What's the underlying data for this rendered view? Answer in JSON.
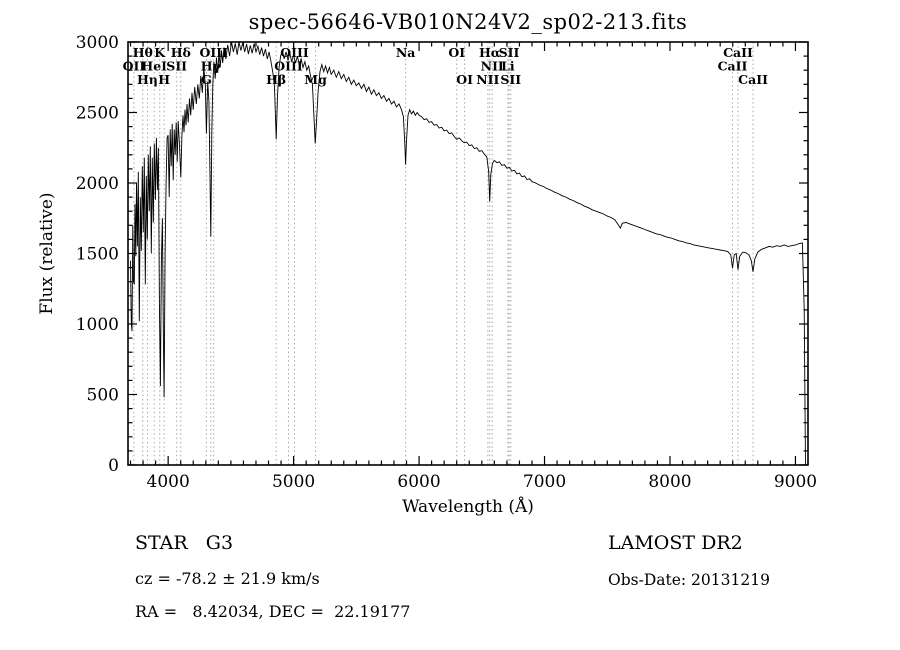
{
  "title": "spec-56646-VB010N24V2_sp02-213.fits",
  "footer": {
    "class_label": "STAR   G3",
    "cz": "cz = -78.2 ± 21.9 km/s",
    "radec": "RA =   8.42034, DEC =  22.19177",
    "survey": "LAMOST DR2",
    "obs_date": "Obs-Date: 20131219"
  },
  "chart_data": {
    "type": "line",
    "title": "spec-56646-VB010N24V2_sp02-213.fits",
    "xlabel": "Wavelength (Å)",
    "ylabel": "Flux (relative)",
    "xlim": [
      3680,
      9100
    ],
    "ylim": [
      0,
      3000
    ],
    "x_ticks": [
      4000,
      5000,
      6000,
      7000,
      8000,
      9000
    ],
    "y_ticks": [
      0,
      500,
      1000,
      1500,
      2000,
      2500,
      3000
    ],
    "grid": false,
    "legend": "none",
    "line_color": "#000000",
    "annotation_line_color": "#a8a8a8",
    "annotations": [
      {
        "wavelength": 3727,
        "label": "OII",
        "row": 2
      },
      {
        "wavelength": 3798,
        "label": "Hθ",
        "row": 1
      },
      {
        "wavelength": 3835,
        "label": "Hη",
        "row": 3
      },
      {
        "wavelength": 3889,
        "label": "HeI",
        "row": 2
      },
      {
        "wavelength": 3933,
        "label": "K",
        "row": 1
      },
      {
        "wavelength": 3968,
        "label": "H",
        "row": 3
      },
      {
        "wavelength": 4068,
        "label": "SII",
        "row": 2
      },
      {
        "wavelength": 4101,
        "label": "Hδ",
        "row": 1
      },
      {
        "wavelength": 4305,
        "label": "G",
        "row": 3
      },
      {
        "wavelength": 4340,
        "label": "Hγ",
        "row": 2
      },
      {
        "wavelength": 4363,
        "label": "OIII",
        "row": 1
      },
      {
        "wavelength": 4861,
        "label": "Hβ",
        "row": 3
      },
      {
        "wavelength": 4959,
        "label": "OIII",
        "row": 2
      },
      {
        "wavelength": 5007,
        "label": "OIII",
        "row": 1
      },
      {
        "wavelength": 5175,
        "label": "Mg",
        "row": 3
      },
      {
        "wavelength": 5893,
        "label": "Na",
        "row": 1
      },
      {
        "wavelength": 6300,
        "label": "OI",
        "row": 1
      },
      {
        "wavelength": 6363,
        "label": "OI",
        "row": 3
      },
      {
        "wavelength": 6548,
        "label": "NII",
        "row": 3
      },
      {
        "wavelength": 6563,
        "label": "Hα",
        "row": 1
      },
      {
        "wavelength": 6583,
        "label": "NII",
        "row": 2
      },
      {
        "wavelength": 6708,
        "label": "Li",
        "row": 2
      },
      {
        "wavelength": 6717,
        "label": "SII",
        "row": 1
      },
      {
        "wavelength": 6731,
        "label": "SII",
        "row": 3
      },
      {
        "wavelength": 8498,
        "label": "CaII",
        "row": 2
      },
      {
        "wavelength": 8542,
        "label": "CaII",
        "row": 1
      },
      {
        "wavelength": 8662,
        "label": "CaII",
        "row": 3
      }
    ],
    "spectrum": [
      [
        3700,
        1450
      ],
      [
        3706,
        1000
      ],
      [
        3712,
        950
      ],
      [
        3718,
        1700
      ],
      [
        3724,
        1300
      ],
      [
        3730,
        1280
      ],
      [
        3736,
        1850
      ],
      [
        3742,
        1480
      ],
      [
        3748,
        2000
      ],
      [
        3755,
        1550
      ],
      [
        3762,
        2080
      ],
      [
        3770,
        1020
      ],
      [
        3778,
        1900
      ],
      [
        3786,
        1520
      ],
      [
        3794,
        2120
      ],
      [
        3802,
        1650
      ],
      [
        3810,
        2180
      ],
      [
        3818,
        1280
      ],
      [
        3826,
        2050
      ],
      [
        3834,
        1600
      ],
      [
        3842,
        2200
      ],
      [
        3850,
        1800
      ],
      [
        3858,
        2260
      ],
      [
        3866,
        1500
      ],
      [
        3874,
        2180
      ],
      [
        3882,
        1720
      ],
      [
        3890,
        2280
      ],
      [
        3898,
        1880
      ],
      [
        3906,
        2320
      ],
      [
        3914,
        1950
      ],
      [
        3922,
        2250
      ],
      [
        3930,
        1150
      ],
      [
        3938,
        560
      ],
      [
        3946,
        1450
      ],
      [
        3954,
        1750
      ],
      [
        3962,
        900
      ],
      [
        3968,
        480
      ],
      [
        3976,
        1500
      ],
      [
        3984,
        2000
      ],
      [
        3992,
        2320
      ],
      [
        4000,
        2340
      ],
      [
        4008,
        1900
      ],
      [
        4016,
        2380
      ],
      [
        4024,
        2120
      ],
      [
        4032,
        2420
      ],
      [
        4040,
        2020
      ],
      [
        4048,
        2380
      ],
      [
        4056,
        2200
      ],
      [
        4064,
        2430
      ],
      [
        4072,
        2150
      ],
      [
        4080,
        2440
      ],
      [
        4090,
        2280
      ],
      [
        4101,
        2040
      ],
      [
        4110,
        2330
      ],
      [
        4118,
        2480
      ],
      [
        4126,
        2360
      ],
      [
        4134,
        2520
      ],
      [
        4142,
        2410
      ],
      [
        4150,
        2560
      ],
      [
        4160,
        2430
      ],
      [
        4170,
        2600
      ],
      [
        4180,
        2480
      ],
      [
        4190,
        2640
      ],
      [
        4200,
        2520
      ],
      [
        4212,
        2680
      ],
      [
        4224,
        2560
      ],
      [
        4236,
        2700
      ],
      [
        4248,
        2600
      ],
      [
        4260,
        2760
      ],
      [
        4272,
        2640
      ],
      [
        4284,
        2820
      ],
      [
        4296,
        2700
      ],
      [
        4305,
        2350
      ],
      [
        4315,
        2720
      ],
      [
        4325,
        2580
      ],
      [
        4333,
        2100
      ],
      [
        4340,
        1620
      ],
      [
        4348,
        2350
      ],
      [
        4356,
        2700
      ],
      [
        4365,
        2860
      ],
      [
        4375,
        2740
      ],
      [
        4385,
        2890
      ],
      [
        4395,
        2780
      ],
      [
        4405,
        2920
      ],
      [
        4415,
        2820
      ],
      [
        4425,
        2940
      ],
      [
        4435,
        2850
      ],
      [
        4445,
        2960
      ],
      [
        4460,
        2880
      ],
      [
        4475,
        2980
      ],
      [
        4490,
        2900
      ],
      [
        4505,
        3000
      ],
      [
        4520,
        2930
      ],
      [
        4535,
        2990
      ],
      [
        4550,
        2910
      ],
      [
        4565,
        3000
      ],
      [
        4580,
        2940
      ],
      [
        4595,
        2995
      ],
      [
        4610,
        2930
      ],
      [
        4625,
        2985
      ],
      [
        4640,
        2915
      ],
      [
        4655,
        2975
      ],
      [
        4670,
        2920
      ],
      [
        4685,
        2990
      ],
      [
        4700,
        2930
      ],
      [
        4715,
        2970
      ],
      [
        4730,
        2910
      ],
      [
        4745,
        2960
      ],
      [
        4760,
        2900
      ],
      [
        4775,
        2950
      ],
      [
        4790,
        2880
      ],
      [
        4805,
        2930
      ],
      [
        4820,
        2860
      ],
      [
        4835,
        2780
      ],
      [
        4848,
        2680
      ],
      [
        4861,
        2310
      ],
      [
        4872,
        2620
      ],
      [
        4884,
        2820
      ],
      [
        4896,
        2900
      ],
      [
        4910,
        2940
      ],
      [
        4925,
        2880
      ],
      [
        4940,
        2930
      ],
      [
        4955,
        2870
      ],
      [
        4970,
        2920
      ],
      [
        4985,
        2860
      ],
      [
        5000,
        2910
      ],
      [
        5015,
        2850
      ],
      [
        5030,
        2900
      ],
      [
        5045,
        2840
      ],
      [
        5060,
        2880
      ],
      [
        5075,
        2820
      ],
      [
        5090,
        2860
      ],
      [
        5105,
        2800
      ],
      [
        5120,
        2830
      ],
      [
        5135,
        2760
      ],
      [
        5150,
        2700
      ],
      [
        5162,
        2480
      ],
      [
        5172,
        2280
      ],
      [
        5182,
        2420
      ],
      [
        5195,
        2650
      ],
      [
        5210,
        2790
      ],
      [
        5225,
        2840
      ],
      [
        5240,
        2790
      ],
      [
        5255,
        2830
      ],
      [
        5270,
        2780
      ],
      [
        5285,
        2820
      ],
      [
        5300,
        2770
      ],
      [
        5320,
        2800
      ],
      [
        5340,
        2750
      ],
      [
        5360,
        2790
      ],
      [
        5380,
        2740
      ],
      [
        5400,
        2770
      ],
      [
        5420,
        2720
      ],
      [
        5440,
        2750
      ],
      [
        5460,
        2700
      ],
      [
        5480,
        2730
      ],
      [
        5500,
        2690
      ],
      [
        5520,
        2710
      ],
      [
        5540,
        2670
      ],
      [
        5560,
        2700
      ],
      [
        5580,
        2650
      ],
      [
        5600,
        2680
      ],
      [
        5620,
        2630
      ],
      [
        5640,
        2660
      ],
      [
        5660,
        2620
      ],
      [
        5680,
        2640
      ],
      [
        5700,
        2600
      ],
      [
        5720,
        2620
      ],
      [
        5740,
        2580
      ],
      [
        5760,
        2600
      ],
      [
        5780,
        2560
      ],
      [
        5800,
        2580
      ],
      [
        5820,
        2540
      ],
      [
        5840,
        2560
      ],
      [
        5860,
        2520
      ],
      [
        5875,
        2470
      ],
      [
        5886,
        2280
      ],
      [
        5893,
        2130
      ],
      [
        5900,
        2300
      ],
      [
        5912,
        2480
      ],
      [
        5925,
        2520
      ],
      [
        5940,
        2490
      ],
      [
        5955,
        2510
      ],
      [
        5970,
        2480
      ],
      [
        5985,
        2500
      ],
      [
        6000,
        2480
      ],
      [
        6020,
        2470
      ],
      [
        6040,
        2450
      ],
      [
        6060,
        2455
      ],
      [
        6080,
        2430
      ],
      [
        6100,
        2435
      ],
      [
        6120,
        2410
      ],
      [
        6140,
        2415
      ],
      [
        6160,
        2390
      ],
      [
        6180,
        2395
      ],
      [
        6200,
        2370
      ],
      [
        6220,
        2375
      ],
      [
        6240,
        2350
      ],
      [
        6260,
        2355
      ],
      [
        6280,
        2330
      ],
      [
        6300,
        2310
      ],
      [
        6320,
        2320
      ],
      [
        6340,
        2300
      ],
      [
        6360,
        2285
      ],
      [
        6380,
        2290
      ],
      [
        6400,
        2265
      ],
      [
        6420,
        2270
      ],
      [
        6440,
        2245
      ],
      [
        6460,
        2250
      ],
      [
        6480,
        2225
      ],
      [
        6500,
        2230
      ],
      [
        6520,
        2205
      ],
      [
        6540,
        2185
      ],
      [
        6555,
        2080
      ],
      [
        6563,
        1870
      ],
      [
        6572,
        2060
      ],
      [
        6585,
        2140
      ],
      [
        6600,
        2160
      ],
      [
        6620,
        2145
      ],
      [
        6640,
        2150
      ],
      [
        6660,
        2125
      ],
      [
        6680,
        2130
      ],
      [
        6700,
        2105
      ],
      [
        6720,
        2110
      ],
      [
        6740,
        2085
      ],
      [
        6760,
        2090
      ],
      [
        6780,
        2065
      ],
      [
        6800,
        2070
      ],
      [
        6820,
        2045
      ],
      [
        6840,
        2050
      ],
      [
        6860,
        2025
      ],
      [
        6880,
        2030
      ],
      [
        6900,
        2010
      ],
      [
        6930,
        2000
      ],
      [
        6960,
        1985
      ],
      [
        6990,
        1975
      ],
      [
        7020,
        1960
      ],
      [
        7050,
        1950
      ],
      [
        7080,
        1935
      ],
      [
        7110,
        1925
      ],
      [
        7140,
        1910
      ],
      [
        7170,
        1900
      ],
      [
        7200,
        1885
      ],
      [
        7230,
        1875
      ],
      [
        7260,
        1860
      ],
      [
        7290,
        1850
      ],
      [
        7320,
        1835
      ],
      [
        7350,
        1825
      ],
      [
        7380,
        1810
      ],
      [
        7410,
        1800
      ],
      [
        7440,
        1790
      ],
      [
        7470,
        1780
      ],
      [
        7500,
        1765
      ],
      [
        7530,
        1755
      ],
      [
        7560,
        1740
      ],
      [
        7590,
        1700
      ],
      [
        7605,
        1680
      ],
      [
        7620,
        1715
      ],
      [
        7650,
        1720
      ],
      [
        7680,
        1710
      ],
      [
        7710,
        1700
      ],
      [
        7740,
        1690
      ],
      [
        7770,
        1680
      ],
      [
        7800,
        1670
      ],
      [
        7830,
        1660
      ],
      [
        7860,
        1650
      ],
      [
        7890,
        1640
      ],
      [
        7920,
        1635
      ],
      [
        7950,
        1625
      ],
      [
        7980,
        1615
      ],
      [
        8010,
        1610
      ],
      [
        8040,
        1600
      ],
      [
        8070,
        1590
      ],
      [
        8100,
        1585
      ],
      [
        8130,
        1575
      ],
      [
        8160,
        1570
      ],
      [
        8190,
        1560
      ],
      [
        8220,
        1555
      ],
      [
        8250,
        1550
      ],
      [
        8280,
        1545
      ],
      [
        8310,
        1540
      ],
      [
        8340,
        1535
      ],
      [
        8370,
        1530
      ],
      [
        8400,
        1525
      ],
      [
        8430,
        1520
      ],
      [
        8460,
        1515
      ],
      [
        8485,
        1490
      ],
      [
        8498,
        1395
      ],
      [
        8512,
        1490
      ],
      [
        8528,
        1500
      ],
      [
        8542,
        1385
      ],
      [
        8556,
        1480
      ],
      [
        8580,
        1510
      ],
      [
        8605,
        1505
      ],
      [
        8630,
        1490
      ],
      [
        8648,
        1450
      ],
      [
        8662,
        1370
      ],
      [
        8676,
        1460
      ],
      [
        8700,
        1510
      ],
      [
        8730,
        1530
      ],
      [
        8760,
        1540
      ],
      [
        8790,
        1550
      ],
      [
        8820,
        1545
      ],
      [
        8850,
        1555
      ],
      [
        8880,
        1550
      ],
      [
        8910,
        1560
      ],
      [
        8940,
        1550
      ],
      [
        8970,
        1555
      ],
      [
        9000,
        1560
      ],
      [
        9030,
        1570
      ],
      [
        9055,
        1575
      ],
      [
        9070,
        1100
      ],
      [
        9080,
        0
      ]
    ]
  }
}
